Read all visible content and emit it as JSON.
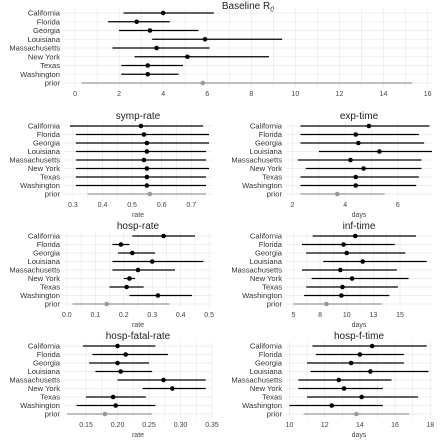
{
  "colors": {
    "estimate": "#000000",
    "prior": "#999999",
    "grid": "#e9e9e9"
  },
  "rows": [
    "California",
    "Florida",
    "Georgia",
    "Louisiana",
    "Massachusetts",
    "New York",
    "Texas",
    "Washington",
    "prior"
  ],
  "chart_data": [
    {
      "type": "interval",
      "title": "Baseline R0",
      "title_base": "Baseline R",
      "title_sub": "0",
      "xlabel": "",
      "xlim": [
        -0.5,
        16.2
      ],
      "xticks": [
        0,
        2,
        4,
        6,
        8,
        10,
        12,
        14,
        16
      ],
      "points": [
        {
          "label": "California",
          "lo": 2.2,
          "mid": 4.0,
          "hi": 6.3
        },
        {
          "label": "Florida",
          "lo": 1.5,
          "mid": 2.8,
          "hi": 4.3
        },
        {
          "label": "Georgia",
          "lo": 2.0,
          "mid": 3.4,
          "hi": 5.6
        },
        {
          "label": "Louisiana",
          "lo": 3.5,
          "mid": 5.9,
          "hi": 9.4
        },
        {
          "label": "Massachusetts",
          "lo": 1.7,
          "mid": 3.7,
          "hi": 6.1
        },
        {
          "label": "New York",
          "lo": 2.7,
          "mid": 5.1,
          "hi": 8.8
        },
        {
          "label": "Texas",
          "lo": 2.1,
          "mid": 3.3,
          "hi": 4.9
        },
        {
          "label": "Washington",
          "lo": 2.1,
          "mid": 3.3,
          "hi": 4.7
        },
        {
          "label": "prior",
          "lo": 0.3,
          "mid": 5.8,
          "hi": 15.3
        }
      ]
    },
    {
      "type": "interval",
      "title": "symp-rate",
      "xlabel": "rate",
      "xlim": [
        0.27,
        0.77
      ],
      "xticks": [
        0.3,
        0.4,
        0.5,
        0.6,
        0.7
      ],
      "points": [
        {
          "label": "California",
          "lo": 0.29,
          "mid": 0.53,
          "hi": 0.74
        },
        {
          "label": "Florida",
          "lo": 0.31,
          "mid": 0.54,
          "hi": 0.76
        },
        {
          "label": "Georgia",
          "lo": 0.31,
          "mid": 0.55,
          "hi": 0.76
        },
        {
          "label": "Louisiana",
          "lo": 0.31,
          "mid": 0.55,
          "hi": 0.75
        },
        {
          "label": "Massachusetts",
          "lo": 0.31,
          "mid": 0.54,
          "hi": 0.75
        },
        {
          "label": "New York",
          "lo": 0.31,
          "mid": 0.55,
          "hi": 0.76
        },
        {
          "label": "Texas",
          "lo": 0.31,
          "mid": 0.55,
          "hi": 0.75
        },
        {
          "label": "Washington",
          "lo": 0.31,
          "mid": 0.55,
          "hi": 0.75
        },
        {
          "label": "prior",
          "lo": 0.35,
          "mid": 0.56,
          "hi": 0.75
        }
      ]
    },
    {
      "type": "interval",
      "title": "exp-time",
      "xlabel": "days",
      "xlim": [
        1.75,
        7.3
      ],
      "xticks": [
        2,
        4,
        6
      ],
      "points": [
        {
          "label": "California",
          "lo": 2.3,
          "mid": 4.9,
          "hi": 7.2
        },
        {
          "label": "Florida",
          "lo": 2.3,
          "mid": 4.4,
          "hi": 6.8
        },
        {
          "label": "Georgia",
          "lo": 2.3,
          "mid": 4.5,
          "hi": 7.0
        },
        {
          "label": "Louisiana",
          "lo": 3.0,
          "mid": 5.3,
          "hi": 7.3
        },
        {
          "label": "Massachusetts",
          "lo": 2.2,
          "mid": 4.2,
          "hi": 6.9
        },
        {
          "label": "New York",
          "lo": 2.5,
          "mid": 4.7,
          "hi": 6.9
        },
        {
          "label": "Texas",
          "lo": 2.3,
          "mid": 4.4,
          "hi": 6.8
        },
        {
          "label": "Washington",
          "lo": 2.3,
          "mid": 4.4,
          "hi": 6.7
        },
        {
          "label": "prior",
          "lo": 2.3,
          "mid": 3.7,
          "hi": 5.5
        }
      ]
    },
    {
      "type": "interval",
      "title": "hosp-rate",
      "xlabel": "rate",
      "xlim": [
        -0.01,
        0.51
      ],
      "xticks": [
        0.0,
        0.1,
        0.2,
        0.3,
        0.4,
        0.5
      ],
      "points": [
        {
          "label": "California",
          "lo": 0.23,
          "mid": 0.34,
          "hi": 0.45
        },
        {
          "label": "Florida",
          "lo": 0.16,
          "mid": 0.19,
          "hi": 0.22
        },
        {
          "label": "Georgia",
          "lo": 0.18,
          "mid": 0.23,
          "hi": 0.31
        },
        {
          "label": "Louisiana",
          "lo": 0.16,
          "mid": 0.3,
          "hi": 0.48
        },
        {
          "label": "Massachusetts",
          "lo": 0.16,
          "mid": 0.25,
          "hi": 0.38
        },
        {
          "label": "New York",
          "lo": 0.2,
          "mid": 0.22,
          "hi": 0.24
        },
        {
          "label": "Texas",
          "lo": 0.15,
          "mid": 0.21,
          "hi": 0.27
        },
        {
          "label": "Washington",
          "lo": 0.22,
          "mid": 0.32,
          "hi": 0.44
        },
        {
          "label": "prior",
          "lo": 0.02,
          "mid": 0.14,
          "hi": 0.36
        }
      ]
    },
    {
      "type": "interval",
      "title": "inf-time",
      "xlabel": "days",
      "xlim": [
        4.3,
        18.0
      ],
      "xticks": [
        5.0,
        7.5,
        10.0,
        12.5,
        15.0
      ],
      "points": [
        {
          "label": "California",
          "lo": 6.8,
          "mid": 10.8,
          "hi": 16.5
        },
        {
          "label": "Florida",
          "lo": 5.8,
          "mid": 9.7,
          "hi": 14.5
        },
        {
          "label": "Georgia",
          "lo": 6.2,
          "mid": 10.0,
          "hi": 15.5
        },
        {
          "label": "Louisiana",
          "lo": 7.8,
          "mid": 11.5,
          "hi": 17.5
        },
        {
          "label": "Massachusetts",
          "lo": 5.8,
          "mid": 9.4,
          "hi": 14.7
        },
        {
          "label": "New York",
          "lo": 6.7,
          "mid": 10.5,
          "hi": 15.8
        },
        {
          "label": "Texas",
          "lo": 6.2,
          "mid": 9.6,
          "hi": 14.8
        },
        {
          "label": "Washington",
          "lo": 6.0,
          "mid": 9.5,
          "hi": 14.0
        },
        {
          "label": "prior",
          "lo": 5.0,
          "mid": 8.1,
          "hi": 13.3
        }
      ]
    },
    {
      "type": "interval",
      "title": "hosp-fatal-rate",
      "xlabel": "rate",
      "xlim": [
        0.115,
        0.35
      ],
      "xticks": [
        0.15,
        0.2,
        0.25,
        0.3,
        0.35
      ],
      "points": [
        {
          "label": "California",
          "lo": 0.145,
          "mid": 0.2,
          "hi": 0.26
        },
        {
          "label": "Florida",
          "lo": 0.16,
          "mid": 0.213,
          "hi": 0.28
        },
        {
          "label": "Georgia",
          "lo": 0.155,
          "mid": 0.2,
          "hi": 0.25
        },
        {
          "label": "Louisiana",
          "lo": 0.165,
          "mid": 0.205,
          "hi": 0.255
        },
        {
          "label": "Massachusetts",
          "lo": 0.2,
          "mid": 0.273,
          "hi": 0.34
        },
        {
          "label": "New York",
          "lo": 0.24,
          "mid": 0.287,
          "hi": 0.34
        },
        {
          "label": "Texas",
          "lo": 0.15,
          "mid": 0.193,
          "hi": 0.245
        },
        {
          "label": "Washington",
          "lo": 0.135,
          "mid": 0.197,
          "hi": 0.26
        },
        {
          "label": "prior",
          "lo": 0.12,
          "mid": 0.18,
          "hi": 0.255
        }
      ]
    },
    {
      "type": "interval",
      "title": "hosp-f-time",
      "xlabel": "days",
      "xlim": [
        9.8,
        18.1
      ],
      "xticks": [
        10,
        12,
        14,
        16,
        18
      ],
      "points": [
        {
          "label": "California",
          "lo": 11.3,
          "mid": 14.7,
          "hi": 17.8
        },
        {
          "label": "Florida",
          "lo": 11.5,
          "mid": 14.0,
          "hi": 16.5
        },
        {
          "label": "Georgia",
          "lo": 11.0,
          "mid": 13.5,
          "hi": 16.5
        },
        {
          "label": "Louisiana",
          "lo": 11.2,
          "mid": 14.6,
          "hi": 17.9
        },
        {
          "label": "Massachusetts",
          "lo": 10.5,
          "mid": 12.8,
          "hi": 15.8
        },
        {
          "label": "New York",
          "lo": 10.5,
          "mid": 13.1,
          "hi": 15.3
        },
        {
          "label": "Texas",
          "lo": 11.0,
          "mid": 14.1,
          "hi": 17.3
        },
        {
          "label": "Washington",
          "lo": 10.0,
          "mid": 12.4,
          "hi": 15.3
        },
        {
          "label": "prior",
          "lo": 10.8,
          "mid": 13.8,
          "hi": 16.8
        }
      ]
    }
  ]
}
